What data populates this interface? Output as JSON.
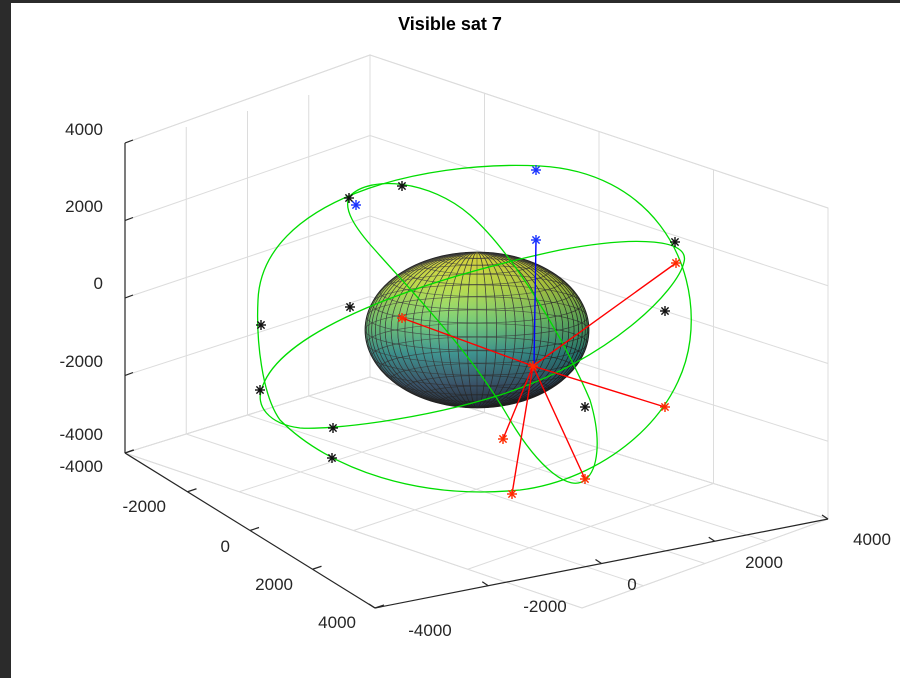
{
  "chart_data": {
    "type": "3d-scatter",
    "title": "Visible sat 7",
    "axes": {
      "x": {
        "label": "",
        "range": [
          -4000,
          4000
        ],
        "ticks": [
          -4000,
          -2000,
          0,
          2000,
          4000
        ],
        "tick_labels": [
          "-4000",
          "-2000",
          "0",
          "2000",
          "4000"
        ]
      },
      "y": {
        "label": "",
        "range": [
          -4000,
          4000
        ],
        "ticks": [
          -4000,
          -2000,
          0,
          2000,
          4000
        ],
        "tick_labels": [
          "-4000",
          "-2000",
          "0",
          "2000",
          "4000"
        ]
      },
      "z": {
        "label": "",
        "range": [
          -4000,
          4000
        ],
        "ticks": [
          -4000,
          -2000,
          0,
          2000,
          4000
        ],
        "tick_labels": [
          "-4000",
          "-2000",
          "0",
          "2000",
          "4000"
        ]
      }
    },
    "grid": true,
    "surface": {
      "kind": "ellipsoid (Earth)",
      "colormap": "viridis-like (yellow top, dark blue-green bottom)"
    },
    "orbits": {
      "count": 3,
      "color": "#00dd00"
    },
    "marker": "*",
    "series_colors": {
      "satellites": "#000000",
      "visible": "#ff0000",
      "receiver": "#0000ff",
      "los_lines": "#ff0000",
      "zenith": "#0000ff"
    }
  }
}
